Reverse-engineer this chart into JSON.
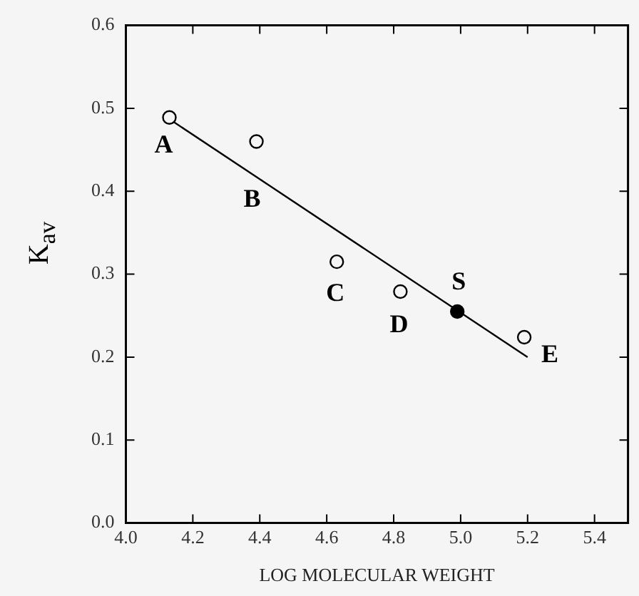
{
  "chart_data": {
    "type": "scatter",
    "xlabel": "LOG MOLECULAR WEIGHT",
    "ylabel": "K$_{av}$",
    "xlim": [
      4.0,
      5.5
    ],
    "xticks": [
      {
        "value": 4.0,
        "label": "4.0"
      },
      4.2,
      4.4,
      4.6,
      4.8,
      {
        "value": 5.0,
        "label": "5.0"
      },
      5.2,
      5.4
    ],
    "ylim": [
      0,
      0.6
    ],
    "yticks": [
      {
        "value": 0,
        "label": "0.0"
      },
      0.1,
      0.2,
      0.3,
      0.4,
      0.5,
      0.6
    ],
    "grid": false,
    "legend": false,
    "marker": "circle",
    "series": [
      {
        "color": "#000000",
        "x": [
          4.13,
          4.39,
          4.63,
          4.82,
          5.19
        ],
        "values": [
          0.489,
          0.46,
          0.315,
          0.279,
          0.224
        ]
      },
      {
        "color": "#000000",
        "x": [
          4.99
        ],
        "values": [
          0.255
        ]
      },
      {
        "type": "line",
        "marker": "none",
        "color": "#000000",
        "x": [
          4.13,
          5.2
        ],
        "values": [
          0.487,
          0.2
        ]
      }
    ],
    "annotations": [
      {
        "text": "A",
        "x": 4.13,
        "y": 0.489
      },
      {
        "text": "B",
        "x": 4.39,
        "y": 0.46
      },
      {
        "text": "C",
        "x": 4.63,
        "y": 0.315
      },
      {
        "text": "D",
        "x": 4.82,
        "y": 0.279
      },
      {
        "text": "S",
        "x": 4.99,
        "y": 0.255
      },
      {
        "text": "E",
        "x": 5.19,
        "y": 0.224
      }
    ]
  }
}
